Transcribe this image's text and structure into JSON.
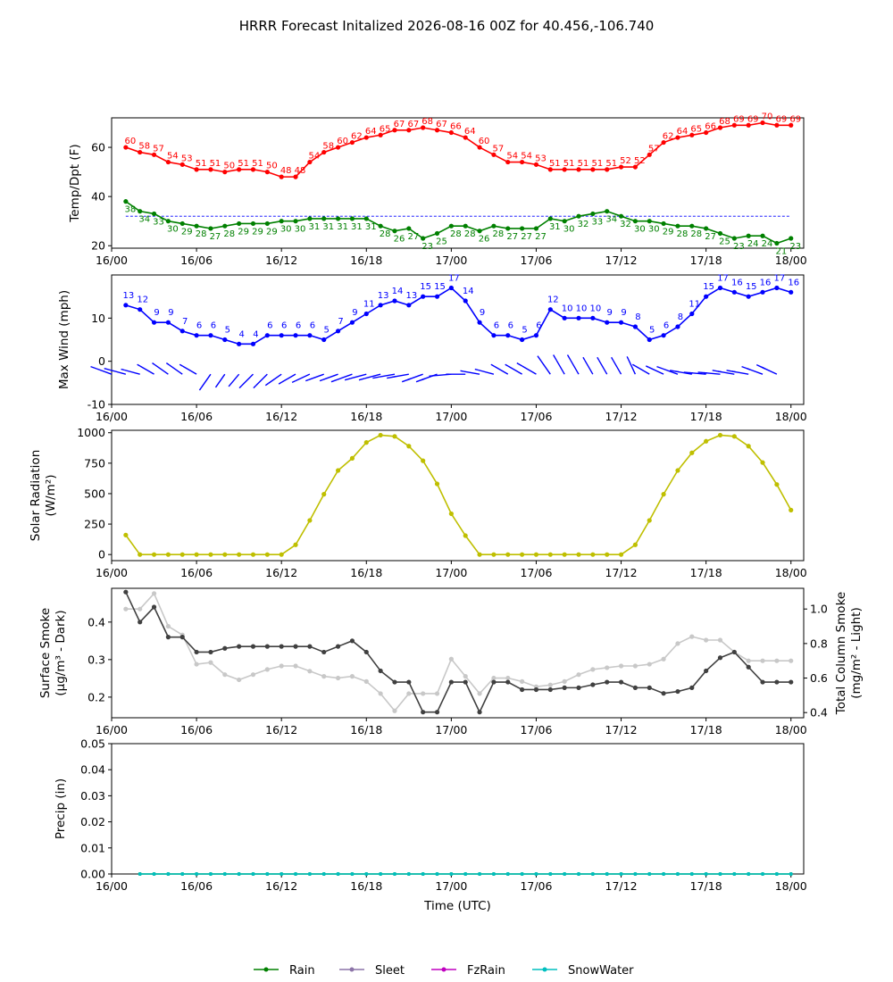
{
  "title": "HRRR Forecast Initalized 2026-08-16 00Z for 40.456,-106.740",
  "colors": {
    "temp": "#ff0000",
    "dewpoint": "#008000",
    "wind": "#0000ff",
    "solar": "#bfbf00",
    "smoke_dark": "#404040",
    "smoke_light": "#c8c8c8",
    "rain": "#008000",
    "sleet": "#8c74a8",
    "fzrain": "#c000c0",
    "snow": "#00bfbf"
  },
  "chart_data": [
    {
      "type": "line",
      "ylabel": "Temp/Dpt (F)",
      "ylim": [
        19,
        72
      ],
      "yticks": [
        20,
        40,
        60
      ],
      "x_hours_start": 1,
      "series": [
        {
          "key": "temp",
          "values": [
            60,
            58,
            57,
            54,
            53,
            51,
            51,
            50,
            51,
            51,
            50,
            48,
            48,
            54,
            58,
            60,
            62,
            64,
            65,
            67,
            67,
            68,
            67,
            66,
            64,
            60,
            57,
            54,
            54,
            53,
            51,
            51,
            51,
            51,
            51,
            52,
            52,
            57,
            62,
            64,
            65,
            66,
            68,
            69,
            69,
            70,
            69,
            69
          ]
        },
        {
          "key": "dewpoint",
          "values": [
            38,
            34,
            33,
            30,
            29,
            28,
            27,
            28,
            29,
            29,
            29,
            30,
            30,
            31,
            31,
            31,
            31,
            31,
            28,
            26,
            27,
            23,
            25,
            28,
            28,
            26,
            28,
            27,
            27,
            27,
            31,
            30,
            32,
            33,
            34,
            32,
            30,
            30,
            29,
            28,
            28,
            27,
            25,
            23,
            24,
            24,
            21,
            23
          ]
        }
      ],
      "reference_line": 32
    },
    {
      "type": "line",
      "ylabel": "Max Wind (mph)",
      "ylim": [
        -10,
        20
      ],
      "yticks": [
        -10,
        0,
        10
      ],
      "x_hours_start": 0,
      "series": [
        {
          "key": "wind",
          "values": [
            13,
            12,
            9,
            9,
            7,
            6,
            6,
            5,
            4,
            4,
            6,
            6,
            6,
            6,
            5,
            7,
            9,
            11,
            13,
            14,
            13,
            15,
            15,
            17,
            14,
            9,
            6,
            6,
            5,
            6,
            12,
            10,
            10,
            10,
            9,
            9,
            8,
            5,
            6,
            8,
            11,
            15,
            17,
            16,
            15,
            16,
            17,
            16
          ]
        }
      ],
      "barb_directions_deg": [
        290,
        285,
        285,
        300,
        305,
        305,
        300,
        215,
        215,
        220,
        225,
        225,
        235,
        240,
        245,
        250,
        250,
        250,
        255,
        255,
        260,
        260,
        250,
        250,
        265,
        270,
        280,
        285,
        300,
        300,
        300,
        325,
        330,
        330,
        330,
        330,
        330,
        335,
        300,
        295,
        290,
        280,
        275,
        275,
        280,
        280,
        290,
        295
      ]
    },
    {
      "type": "line",
      "ylabel": "Solar Radiation",
      "ylabel2": "(W/m²)",
      "ylim": [
        -50,
        1020
      ],
      "yticks": [
        0,
        250,
        500,
        750,
        1000
      ],
      "x_hours_start": 1,
      "series": [
        {
          "key": "solar",
          "values": [
            160,
            0,
            0,
            0,
            0,
            0,
            0,
            0,
            0,
            0,
            0,
            0,
            80,
            280,
            495,
            690,
            790,
            920,
            980,
            970,
            890,
            770,
            580,
            335,
            155,
            0,
            0,
            0,
            0,
            0,
            0,
            0,
            0,
            0,
            0,
            0,
            80,
            280,
            495,
            690,
            835,
            930,
            980,
            970,
            890,
            755,
            575,
            365
          ]
        }
      ]
    },
    {
      "type": "line",
      "ylabel": "Surface Smoke",
      "ylabel_unit": "(µg/m³ - Dark)",
      "ylabel_right": "Total Column Smoke",
      "ylabel_right_unit": "(mg/m² - Light)",
      "ylim": [
        0.145,
        0.49
      ],
      "yticks": [
        0.2,
        0.3,
        0.4
      ],
      "ylim_right": [
        0.37,
        1.12
      ],
      "yticks_right": [
        0.4,
        0.6,
        0.8,
        1.0
      ],
      "x_hours_start": 1,
      "series": [
        {
          "key": "surface_smoke",
          "values": [
            0.48,
            0.4,
            0.44,
            0.36,
            0.36,
            0.32,
            0.32,
            0.33,
            0.335,
            0.335,
            0.335,
            0.335,
            0.335,
            0.335,
            0.32,
            0.335,
            0.35,
            0.32,
            0.27,
            0.24,
            0.24,
            0.16,
            0.16,
            0.24,
            0.24,
            0.16,
            0.24,
            0.24,
            0.22,
            0.22,
            0.22,
            0.225,
            0.225,
            0.233,
            0.24,
            0.24,
            0.225,
            0.225,
            0.21,
            0.215,
            0.225,
            0.27,
            0.305,
            0.32,
            0.28,
            0.24,
            0.24,
            0.24
          ]
        },
        {
          "key": "column_smoke",
          "values": [
            1.0,
            1.0,
            1.09,
            0.9,
            0.85,
            0.68,
            0.69,
            0.62,
            0.59,
            0.62,
            0.65,
            0.67,
            0.67,
            0.64,
            0.61,
            0.6,
            0.61,
            0.58,
            0.51,
            0.41,
            0.51,
            0.51,
            0.51,
            0.71,
            0.61,
            0.51,
            0.6,
            0.6,
            0.58,
            0.55,
            0.56,
            0.58,
            0.62,
            0.65,
            0.66,
            0.67,
            0.67,
            0.68,
            0.71,
            0.8,
            0.84,
            0.82,
            0.82,
            0.75,
            0.7,
            0.7,
            0.7,
            0.7
          ]
        }
      ]
    },
    {
      "type": "line",
      "ylabel": "Precip (in)",
      "xlabel": "Time (UTC)",
      "ylim": [
        0,
        0.05
      ],
      "yticks": [
        "0.00",
        "0.01",
        "0.02",
        "0.03",
        "0.04",
        "0.05"
      ],
      "x_hours_start": 2,
      "series": [
        {
          "key": "rain",
          "name": "Rain",
          "values": [
            0,
            0,
            0,
            0,
            0,
            0,
            0,
            0,
            0,
            0,
            0,
            0,
            0,
            0,
            0,
            0,
            0,
            0,
            0,
            0,
            0,
            0,
            0,
            0,
            0,
            0,
            0,
            0,
            0,
            0,
            0,
            0,
            0,
            0,
            0,
            0,
            0,
            0,
            0,
            0,
            0,
            0,
            0,
            0,
            0,
            0,
            0
          ]
        },
        {
          "key": "snow",
          "name": "SnowWater",
          "values": [
            0,
            0,
            0,
            0,
            0,
            0,
            0,
            0,
            0,
            0,
            0,
            0,
            0,
            0,
            0,
            0,
            0,
            0,
            0,
            0,
            0,
            0,
            0,
            0,
            0,
            0,
            0,
            0,
            0,
            0,
            0,
            0,
            0,
            0,
            0,
            0,
            0,
            0,
            0,
            0,
            0,
            0,
            0,
            0,
            0,
            0,
            0
          ]
        }
      ]
    }
  ],
  "x_tick_labels": [
    "16/00",
    "16/06",
    "16/12",
    "16/18",
    "17/00",
    "17/06",
    "17/12",
    "17/18",
    "18/00"
  ],
  "legend": [
    {
      "label": "Rain",
      "color_key": "rain"
    },
    {
      "label": "Sleet",
      "color_key": "sleet"
    },
    {
      "label": "FzRain",
      "color_key": "fzrain"
    },
    {
      "label": "SnowWater",
      "color_key": "snow"
    }
  ]
}
